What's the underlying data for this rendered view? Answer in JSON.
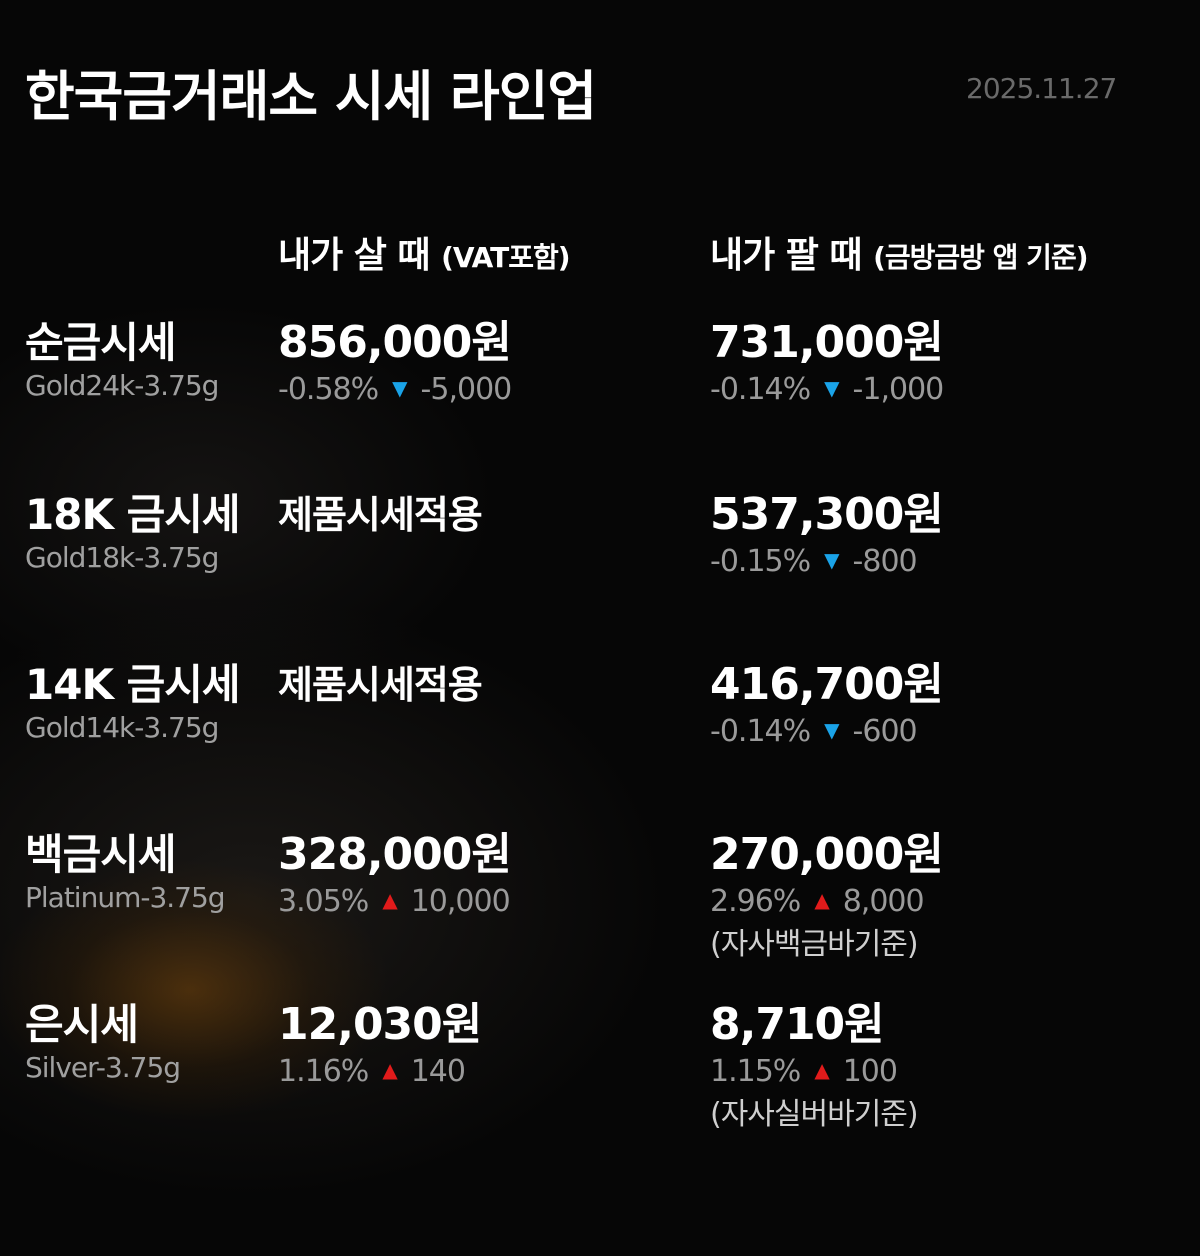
{
  "title": "한국금거래소 시세 라인업",
  "date": "2025.11.27",
  "colors": {
    "down": "#1aa3e8",
    "up": "#e21b1b",
    "background": "#050505",
    "sub_text": "#9a9a9a"
  },
  "headers": {
    "buy": {
      "main": "내가 살 때",
      "note": "(VAT포함)"
    },
    "sell": {
      "main": "내가 팔 때",
      "note": "(금방금방 앱 기준)"
    }
  },
  "rows": [
    {
      "name": "순금시세",
      "sub": "Gold24k-3.75g",
      "buy": {
        "price": "856,000원",
        "pct": "-0.58%",
        "dir": "down",
        "icon": "triangle-down-icon",
        "diff": "-5,000"
      },
      "sell": {
        "price": "731,000원",
        "pct": "-0.14%",
        "dir": "down",
        "icon": "triangle-down-icon",
        "diff": "-1,000"
      }
    },
    {
      "name": "18K 금시세",
      "sub": "Gold18k-3.75g",
      "buy": {
        "text": "제품시세적용"
      },
      "sell": {
        "price": "537,300원",
        "pct": "-0.15%",
        "dir": "down",
        "icon": "triangle-down-icon",
        "diff": "-800"
      }
    },
    {
      "name": "14K 금시세",
      "sub": "Gold14k-3.75g",
      "buy": {
        "text": "제품시세적용"
      },
      "sell": {
        "price": "416,700원",
        "pct": "-0.14%",
        "dir": "down",
        "icon": "triangle-down-icon",
        "diff": "-600"
      }
    },
    {
      "name": "백금시세",
      "sub": "Platinum-3.75g",
      "buy": {
        "price": "328,000원",
        "pct": "3.05%",
        "dir": "up",
        "icon": "triangle-up-icon",
        "diff": "10,000"
      },
      "sell": {
        "price": "270,000원",
        "pct": "2.96%",
        "dir": "up",
        "icon": "triangle-up-icon",
        "diff": "8,000",
        "note": "(자사백금바기준)"
      }
    },
    {
      "name": "은시세",
      "sub": "Silver-3.75g",
      "buy": {
        "price": "12,030원",
        "pct": "1.16%",
        "dir": "up",
        "icon": "triangle-up-icon",
        "diff": "140"
      },
      "sell": {
        "price": "8,710원",
        "pct": "1.15%",
        "dir": "up",
        "icon": "triangle-up-icon",
        "diff": "100",
        "note": "(자사실버바기준)"
      }
    }
  ]
}
